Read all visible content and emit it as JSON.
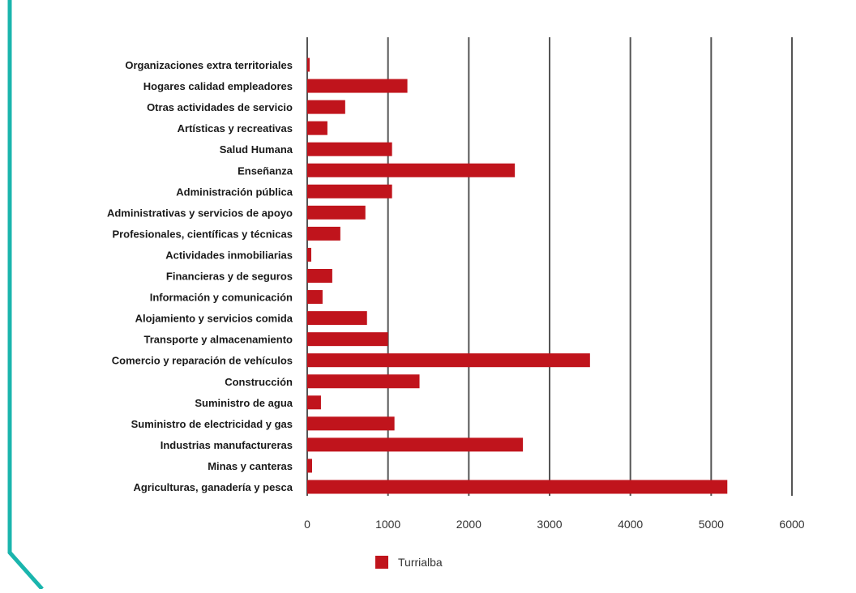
{
  "chart_data": {
    "type": "bar",
    "orientation": "horizontal",
    "title": "",
    "xlabel": "",
    "ylabel": "",
    "xlim": [
      0,
      6000
    ],
    "xticks": [
      0,
      1000,
      2000,
      3000,
      4000,
      5000,
      6000
    ],
    "grid": true,
    "legend_position": "bottom",
    "categories": [
      "Organizaciones extra territoriales",
      "Hogares calidad empleadores",
      "Otras actividades de servicio",
      "Artísticas y recreativas",
      "Salud Humana",
      "Enseñanza",
      "Administración pública",
      "Administrativas y servicios de apoyo",
      "Profesionales, científicas y técnicas",
      "Actividades inmobiliarias",
      "Financieras y de seguros",
      "Información y comunicación",
      "Alojamiento y servicios comida",
      "Transporte y almacenamiento",
      "Comercio y reparación de vehículos",
      "Construcción",
      "Suministro de agua",
      "Suministro de electricidad y gas",
      "Industrias manufactureras",
      "Minas y canteras",
      "Agriculturas, ganadería y pesca"
    ],
    "series": [
      {
        "name": "Turrialba",
        "color": "#c0141c",
        "values": [
          30,
          1240,
          470,
          250,
          1050,
          2570,
          1050,
          720,
          410,
          50,
          310,
          190,
          740,
          1000,
          3500,
          1390,
          170,
          1080,
          2670,
          60,
          5200
        ]
      }
    ]
  },
  "colors": {
    "accent_line": "#1ab5ad",
    "bar": "#c0141c",
    "grid": "#555555"
  }
}
